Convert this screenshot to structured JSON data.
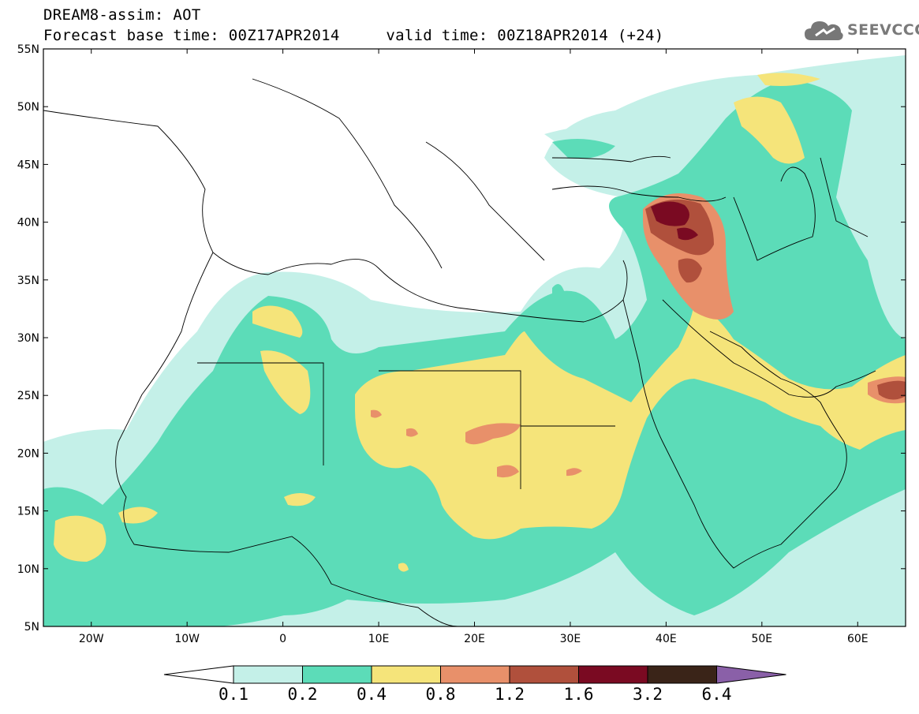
{
  "header": {
    "line1": "DREAM8-assim: AOT",
    "line2": "Forecast base time: 00Z17APR2014     valid time: 00Z18APR2014 (+24)"
  },
  "logo": {
    "text": "SEEVCCC",
    "icon": "cloud-icon",
    "color": "#777777"
  },
  "map": {
    "lon_range": [
      -25,
      65
    ],
    "lat_range": [
      5,
      55
    ],
    "lat_ticks": [
      "55N",
      "50N",
      "45N",
      "40N",
      "35N",
      "30N",
      "25N",
      "20N",
      "15N",
      "10N",
      "5N"
    ],
    "lon_ticks": [
      "20W",
      "10W",
      "0",
      "10E",
      "20E",
      "30E",
      "40E",
      "50E",
      "60E"
    ],
    "lat_values": [
      55,
      50,
      45,
      40,
      35,
      30,
      25,
      20,
      15,
      10,
      5
    ],
    "lon_values": [
      -20,
      -10,
      0,
      10,
      20,
      30,
      40,
      50,
      60
    ]
  },
  "colorbar": {
    "labels": [
      "0.1",
      "0.2",
      "0.4",
      "0.8",
      "1.2",
      "1.6",
      "3.2",
      "6.4"
    ],
    "colors": [
      "#ffffff",
      "#c4f0e8",
      "#5cdcb8",
      "#f5e47a",
      "#e8906a",
      "#b0503c",
      "#7a0a22",
      "#3a2418",
      "#8a60a8"
    ]
  }
}
